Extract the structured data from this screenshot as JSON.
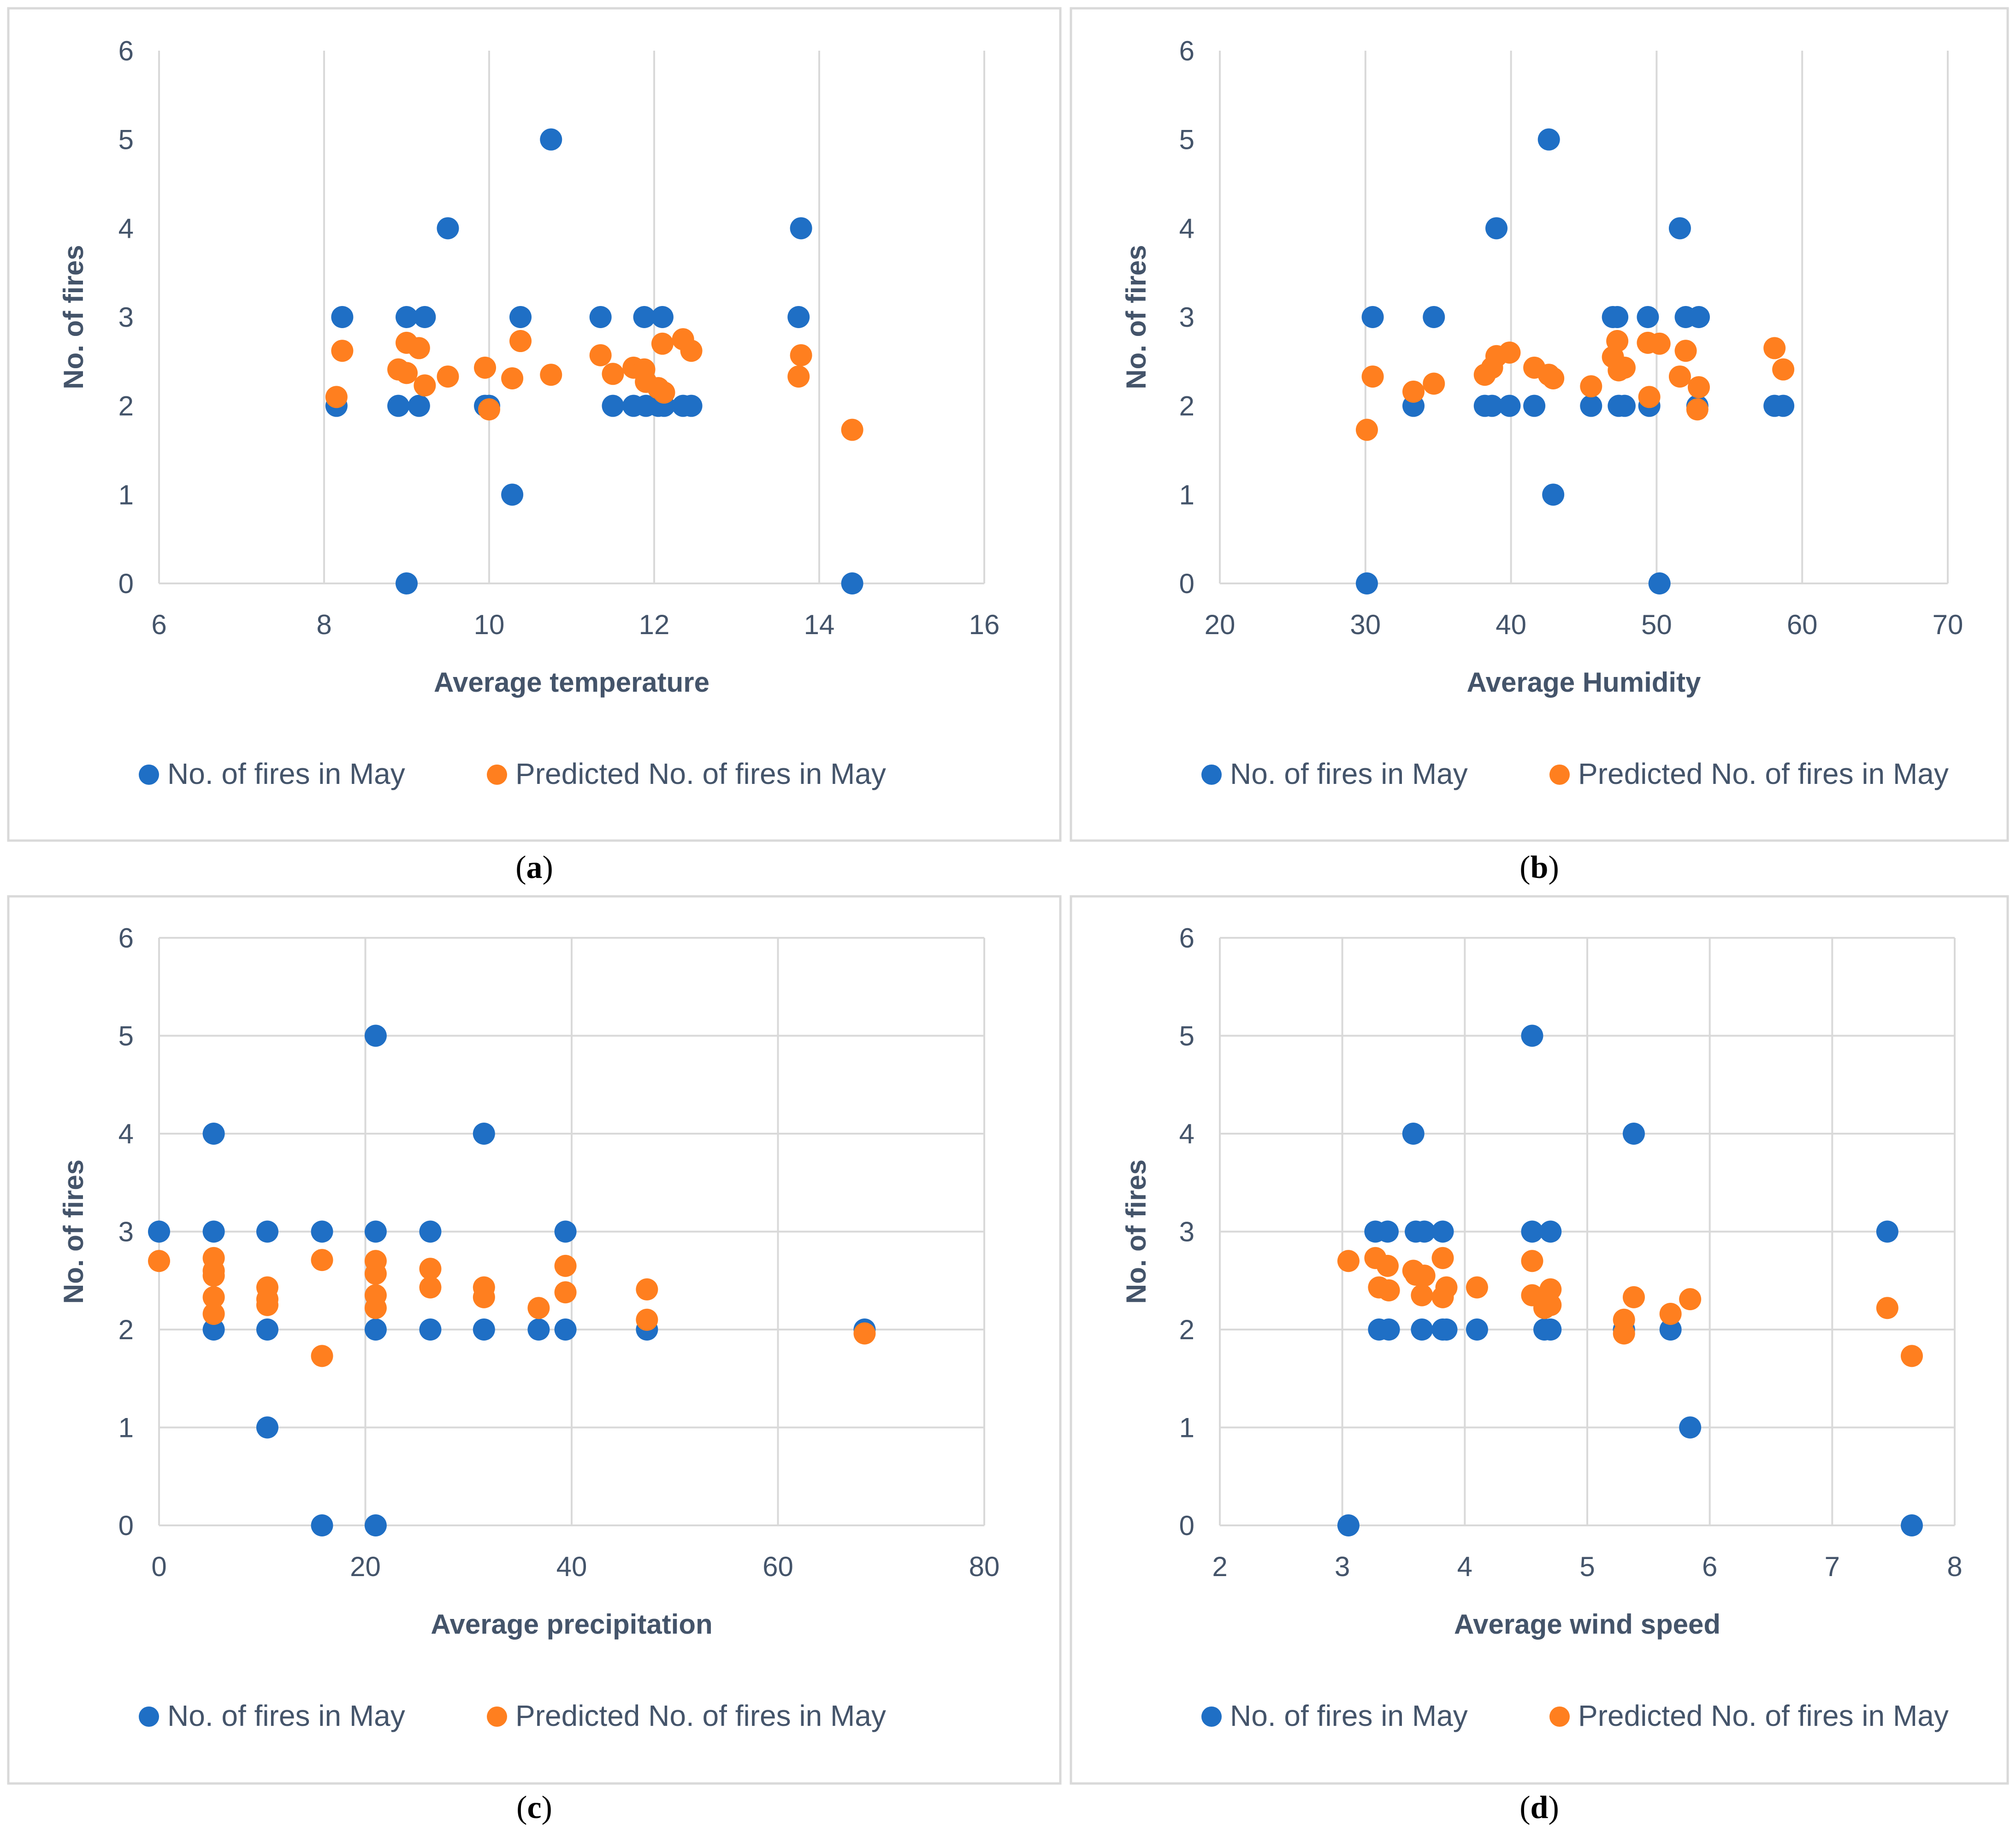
{
  "colors": {
    "observed": "#1f6fc5",
    "predicted": "#ff7f1f"
  },
  "legend": {
    "observed": "No. of fires in May",
    "predicted": "Predicted No. of fires in May"
  },
  "chart_data": [
    {
      "type": "scatter",
      "caption": "a",
      "xlabel": "Average temperature",
      "ylabel": "No. of fires",
      "xlim": [
        6,
        16
      ],
      "ylim": [
        0,
        6
      ],
      "xticks": [
        "6",
        "8",
        "10",
        "12",
        "14",
        "16"
      ],
      "yticks": [
        "0",
        "1",
        "2",
        "3",
        "4",
        "5",
        "6"
      ],
      "grid": "vertical",
      "legend_position": "bottom",
      "series": [
        {
          "name": "No. of fires in May",
          "points": [
            [
              8.15,
              2
            ],
            [
              8.22,
              3
            ],
            [
              8.9,
              2
            ],
            [
              9.0,
              3
            ],
            [
              9.0,
              0
            ],
            [
              9.15,
              2
            ],
            [
              9.22,
              3
            ],
            [
              9.5,
              4
            ],
            [
              9.95,
              2
            ],
            [
              10.0,
              2
            ],
            [
              10.28,
              1
            ],
            [
              10.38,
              3
            ],
            [
              10.75,
              5
            ],
            [
              11.35,
              3
            ],
            [
              11.5,
              2
            ],
            [
              11.75,
              2
            ],
            [
              11.88,
              3
            ],
            [
              11.9,
              2
            ],
            [
              12.05,
              2
            ],
            [
              12.1,
              3
            ],
            [
              12.12,
              2
            ],
            [
              12.35,
              2
            ],
            [
              12.45,
              2
            ],
            [
              13.75,
              3
            ],
            [
              13.78,
              4
            ],
            [
              14.4,
              0
            ]
          ]
        },
        {
          "name": "Predicted No. of fires in May",
          "points": [
            [
              8.15,
              2.1
            ],
            [
              8.22,
              2.62
            ],
            [
              8.9,
              2.41
            ],
            [
              9.0,
              2.71
            ],
            [
              9.0,
              2.37
            ],
            [
              9.15,
              2.65
            ],
            [
              9.22,
              2.23
            ],
            [
              9.5,
              2.33
            ],
            [
              9.95,
              2.43
            ],
            [
              10.0,
              1.96
            ],
            [
              10.28,
              2.31
            ],
            [
              10.38,
              2.73
            ],
            [
              10.75,
              2.35
            ],
            [
              11.35,
              2.57
            ],
            [
              11.5,
              2.36
            ],
            [
              11.75,
              2.43
            ],
            [
              11.88,
              2.41
            ],
            [
              11.9,
              2.27
            ],
            [
              12.05,
              2.2
            ],
            [
              12.1,
              2.7
            ],
            [
              12.12,
              2.15
            ],
            [
              12.35,
              2.75
            ],
            [
              12.45,
              2.62
            ],
            [
              13.75,
              2.33
            ],
            [
              13.78,
              2.57
            ],
            [
              14.4,
              1.73
            ]
          ]
        }
      ]
    },
    {
      "type": "scatter",
      "caption": "b",
      "xlabel": "Average Humidity",
      "ylabel": "No. of fires",
      "xlim": [
        20,
        70
      ],
      "ylim": [
        0,
        6
      ],
      "xticks": [
        "20",
        "30",
        "40",
        "50",
        "60",
        "70"
      ],
      "yticks": [
        "0",
        "1",
        "2",
        "3",
        "4",
        "5",
        "6"
      ],
      "grid": "vertical",
      "legend_position": "bottom",
      "series": [
        {
          "name": "No. of fires in May",
          "points": [
            [
              30.1,
              0
            ],
            [
              30.5,
              3
            ],
            [
              33.3,
              2
            ],
            [
              34.7,
              3
            ],
            [
              38.2,
              2
            ],
            [
              38.7,
              2
            ],
            [
              39.0,
              4
            ],
            [
              39.9,
              2
            ],
            [
              41.6,
              2
            ],
            [
              42.6,
              5
            ],
            [
              42.9,
              1
            ],
            [
              45.5,
              2
            ],
            [
              47.0,
              3
            ],
            [
              47.3,
              3
            ],
            [
              47.4,
              2
            ],
            [
              47.8,
              2
            ],
            [
              49.4,
              3
            ],
            [
              49.5,
              2
            ],
            [
              50.2,
              0
            ],
            [
              51.6,
              4
            ],
            [
              52.0,
              3
            ],
            [
              52.8,
              2
            ],
            [
              52.9,
              3
            ],
            [
              58.1,
              2
            ],
            [
              58.7,
              2
            ]
          ]
        },
        {
          "name": "Predicted No. of fires in May",
          "points": [
            [
              30.1,
              1.73
            ],
            [
              30.5,
              2.33
            ],
            [
              33.3,
              2.16
            ],
            [
              34.7,
              2.25
            ],
            [
              38.2,
              2.35
            ],
            [
              38.7,
              2.43
            ],
            [
              39.0,
              2.56
            ],
            [
              39.9,
              2.6
            ],
            [
              41.6,
              2.43
            ],
            [
              42.6,
              2.35
            ],
            [
              42.9,
              2.31
            ],
            [
              45.5,
              2.22
            ],
            [
              47.0,
              2.55
            ],
            [
              47.3,
              2.73
            ],
            [
              47.4,
              2.4
            ],
            [
              47.8,
              2.43
            ],
            [
              49.4,
              2.71
            ],
            [
              49.5,
              2.1
            ],
            [
              50.2,
              2.7
            ],
            [
              51.6,
              2.33
            ],
            [
              52.0,
              2.62
            ],
            [
              52.8,
              1.96
            ],
            [
              52.9,
              2.21
            ],
            [
              58.1,
              2.65
            ],
            [
              58.7,
              2.41
            ]
          ]
        }
      ]
    },
    {
      "type": "scatter",
      "caption": "c",
      "xlabel": "Average precipitation",
      "ylabel": "No. of fires",
      "xlim": [
        0,
        80
      ],
      "ylim": [
        0,
        6
      ],
      "xticks": [
        "0",
        "20",
        "40",
        "60",
        "80"
      ],
      "yticks": [
        "0",
        "1",
        "2",
        "3",
        "4",
        "5",
        "6"
      ],
      "grid": "both",
      "legend_position": "bottom",
      "series": [
        {
          "name": "No. of fires in May",
          "points": [
            [
              0,
              3
            ],
            [
              5.3,
              4
            ],
            [
              5.3,
              3
            ],
            [
              5.3,
              2
            ],
            [
              10.5,
              3
            ],
            [
              10.5,
              2
            ],
            [
              10.5,
              1
            ],
            [
              15.8,
              3
            ],
            [
              15.8,
              0
            ],
            [
              21.0,
              5
            ],
            [
              21.0,
              3
            ],
            [
              21.0,
              2
            ],
            [
              21.0,
              0
            ],
            [
              26.3,
              3
            ],
            [
              26.3,
              2
            ],
            [
              31.5,
              4
            ],
            [
              31.5,
              2
            ],
            [
              36.8,
              2
            ],
            [
              39.4,
              3
            ],
            [
              39.4,
              2
            ],
            [
              47.3,
              2
            ],
            [
              68.4,
              2
            ]
          ]
        },
        {
          "name": "Predicted No. of fires in May",
          "points": [
            [
              0,
              2.7
            ],
            [
              5.3,
              2.73
            ],
            [
              5.3,
              2.6
            ],
            [
              5.3,
              2.55
            ],
            [
              5.3,
              2.33
            ],
            [
              5.3,
              2.16
            ],
            [
              10.5,
              2.43
            ],
            [
              10.5,
              2.31
            ],
            [
              10.5,
              2.25
            ],
            [
              15.8,
              2.71
            ],
            [
              15.8,
              1.73
            ],
            [
              21.0,
              2.7
            ],
            [
              21.0,
              2.57
            ],
            [
              21.0,
              2.35
            ],
            [
              21.0,
              2.22
            ],
            [
              26.3,
              2.62
            ],
            [
              26.3,
              2.43
            ],
            [
              31.5,
              2.43
            ],
            [
              31.5,
              2.33
            ],
            [
              36.8,
              2.22
            ],
            [
              39.4,
              2.65
            ],
            [
              39.4,
              2.38
            ],
            [
              47.3,
              2.41
            ],
            [
              47.3,
              2.1
            ],
            [
              68.4,
              1.96
            ]
          ]
        }
      ]
    },
    {
      "type": "scatter",
      "caption": "d",
      "xlabel": "Average wind speed",
      "ylabel": "No. of fires",
      "xlim": [
        2,
        8
      ],
      "ylim": [
        0,
        6
      ],
      "xticks": [
        "2",
        "3",
        "4",
        "5",
        "6",
        "7",
        "8"
      ],
      "yticks": [
        "0",
        "1",
        "2",
        "3",
        "4",
        "5",
        "6"
      ],
      "grid": "both",
      "legend_position": "bottom",
      "series": [
        {
          "name": "No. of fires in May",
          "points": [
            [
              3.05,
              0
            ],
            [
              3.27,
              3
            ],
            [
              3.3,
              2
            ],
            [
              3.37,
              3
            ],
            [
              3.38,
              2
            ],
            [
              3.58,
              4
            ],
            [
              3.6,
              3
            ],
            [
              3.65,
              2
            ],
            [
              3.67,
              3
            ],
            [
              3.82,
              3
            ],
            [
              3.82,
              2
            ],
            [
              3.85,
              2
            ],
            [
              4.1,
              2
            ],
            [
              4.55,
              5
            ],
            [
              4.55,
              3
            ],
            [
              4.65,
              2
            ],
            [
              4.7,
              3
            ],
            [
              4.7,
              2
            ],
            [
              5.3,
              2
            ],
            [
              5.3,
              2
            ],
            [
              5.38,
              4
            ],
            [
              5.68,
              2
            ],
            [
              5.84,
              1
            ],
            [
              7.45,
              3
            ],
            [
              7.65,
              0
            ]
          ]
        },
        {
          "name": "Predicted No. of fires in May",
          "points": [
            [
              3.05,
              2.7
            ],
            [
              3.27,
              2.73
            ],
            [
              3.3,
              2.43
            ],
            [
              3.37,
              2.65
            ],
            [
              3.38,
              2.4
            ],
            [
              3.58,
              2.6
            ],
            [
              3.6,
              2.56
            ],
            [
              3.65,
              2.35
            ],
            [
              3.67,
              2.55
            ],
            [
              3.82,
              2.73
            ],
            [
              3.82,
              2.33
            ],
            [
              3.85,
              2.43
            ],
            [
              4.1,
              2.43
            ],
            [
              4.55,
              2.7
            ],
            [
              4.55,
              2.35
            ],
            [
              4.65,
              2.22
            ],
            [
              4.7,
              2.41
            ],
            [
              4.7,
              2.25
            ],
            [
              5.3,
              2.1
            ],
            [
              5.3,
              1.96
            ],
            [
              5.38,
              2.33
            ],
            [
              5.68,
              2.16
            ],
            [
              5.84,
              2.31
            ],
            [
              7.45,
              2.22
            ],
            [
              7.65,
              1.73
            ]
          ]
        }
      ]
    }
  ]
}
